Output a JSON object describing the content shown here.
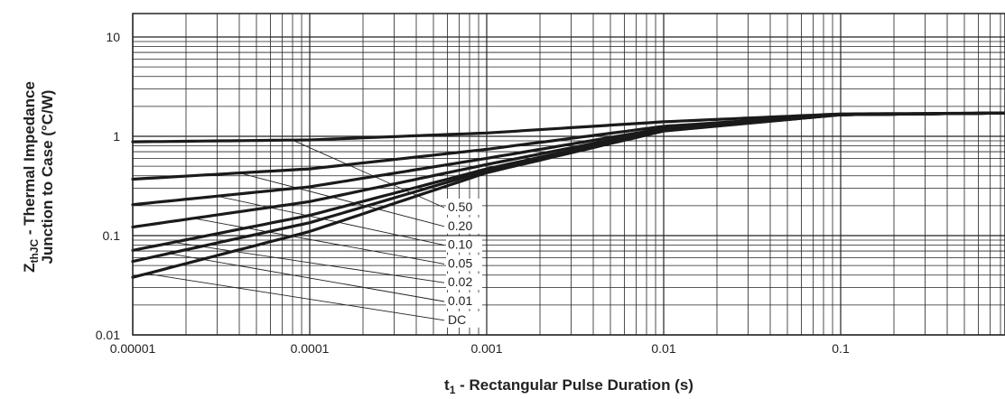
{
  "chart_data": {
    "type": "line",
    "xscale": "log",
    "yscale": "log",
    "xlim": [
      1e-05,
      1.0
    ],
    "ylim": [
      0.01,
      10
    ],
    "grid": true,
    "x_tick_labels": [
      "0.00001",
      "0.0001",
      "0.001",
      "0.01",
      "0.1"
    ],
    "y_tick_labels": [
      "0.01",
      "0.1",
      "1",
      "10"
    ],
    "xlabel": {
      "pre": "t",
      "sub": "1",
      "post": " - Rectangular Pulse Duration (s)"
    },
    "ylabel": {
      "line1_pre": "Z",
      "line1_sub": "thJC",
      "line1_post": " - Thermal Impedance",
      "line2": "Junction to Case (°C/W)"
    },
    "x": [
      1e-05,
      0.0001,
      0.001,
      0.01,
      0.1,
      1.0
    ],
    "series": [
      {
        "name": "0.50",
        "values": [
          0.88,
          0.92,
          1.08,
          1.4,
          1.68,
          1.72
        ]
      },
      {
        "name": "0.20",
        "values": [
          0.37,
          0.47,
          0.74,
          1.26,
          1.66,
          1.72
        ]
      },
      {
        "name": "0.10",
        "values": [
          0.205,
          0.31,
          0.6,
          1.2,
          1.65,
          1.72
        ]
      },
      {
        "name": "0.05",
        "values": [
          0.122,
          0.22,
          0.52,
          1.17,
          1.65,
          1.72
        ]
      },
      {
        "name": "0.02",
        "values": [
          0.071,
          0.16,
          0.47,
          1.15,
          1.65,
          1.72
        ]
      },
      {
        "name": "0.01",
        "values": [
          0.055,
          0.135,
          0.45,
          1.14,
          1.65,
          1.72
        ]
      },
      {
        "name": "DC",
        "values": [
          0.038,
          0.11,
          0.43,
          1.13,
          1.65,
          1.72
        ]
      }
    ],
    "annotation_anchor_x": [
      8e-05,
      4e-05,
      3e-05,
      2.2e-05,
      1.7e-05,
      1.6e-05,
      1.2e-05
    ]
  }
}
